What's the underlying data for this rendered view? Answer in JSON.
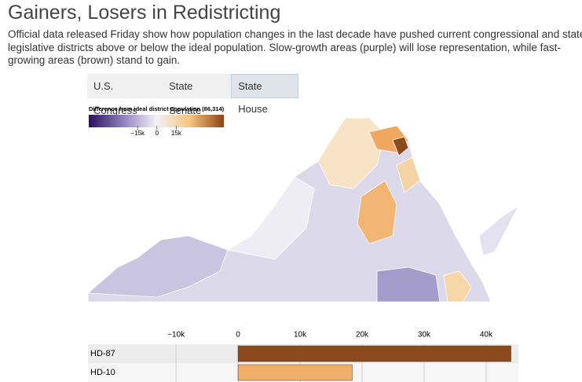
{
  "header": {
    "title": "Gainers, Losers in Redistricting",
    "subtitle": [
      "Official data released Friday show how population changes in the last decade have pushed current congressional and state",
      "legislative districts above or below the ideal population. Slow-growth areas (purple) will lose representation, while fast-",
      "growing areas (brown) stand to gain."
    ]
  },
  "tabs": [
    "U.S. Congress",
    "State Senate",
    "State House"
  ],
  "legend": {
    "title": "Difference from ideal district population (86,314)",
    "range": [
      -53000,
      52000
    ],
    "colors": [
      "#2d0f5e",
      "#8b7fbb",
      "#f3f1f7",
      "#f6c47f",
      "#8b4512"
    ],
    "ticks": [
      {
        "value": -15000,
        "label": "−15k"
      },
      0,
      {
        "value": 15000,
        "label": "15k"
      }
    ]
  },
  "chart_data": {
    "type": "bar",
    "orientation": "horizontal",
    "categories": [
      "HD-87",
      "HD-10"
    ],
    "values": [
      44000,
      18400
    ],
    "colors": [
      "#8b4a1e",
      "#f0b06a"
    ],
    "xlim": [
      -24200,
      45200
    ],
    "xticks": [
      {
        "value": -10000,
        "label": "−10k"
      },
      0,
      {
        "value": 10000,
        "label": "10k"
      },
      {
        "value": 20000,
        "label": "20k"
      },
      {
        "value": 30000,
        "label": "30k"
      },
      {
        "value": 40000,
        "label": "40k"
      }
    ],
    "grid": true
  }
}
